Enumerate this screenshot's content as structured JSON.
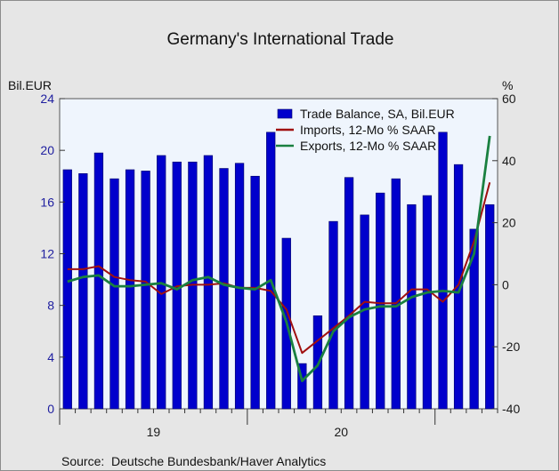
{
  "chart_data": {
    "type": "bar+line",
    "title": "Germany's International Trade",
    "left_axis_label": "Bil.EUR",
    "right_axis_label": "%",
    "left_ylim": [
      0,
      24
    ],
    "left_ticks": [
      "0",
      "4",
      "8",
      "12",
      "16",
      "20",
      "24"
    ],
    "right_ylim": [
      -40,
      60
    ],
    "right_ticks": [
      "-40",
      "-20",
      "0",
      "20",
      "40",
      "60"
    ],
    "x_labels": [
      "19",
      "20"
    ],
    "source": "Source:  Deutsche Bundesbank/Haver Analytics",
    "grid": false,
    "legend_position": "top-right",
    "months": [
      "2019-01",
      "2019-02",
      "2019-03",
      "2019-04",
      "2019-05",
      "2019-06",
      "2019-07",
      "2019-08",
      "2019-09",
      "2019-10",
      "2019-11",
      "2019-12",
      "2020-01",
      "2020-02",
      "2020-03",
      "2020-04",
      "2020-05",
      "2020-06",
      "2020-07",
      "2020-08",
      "2020-09",
      "2020-10",
      "2020-11",
      "2020-12",
      "2021-01",
      "2021-02",
      "2021-03",
      "2021-04"
    ],
    "series": [
      {
        "name": "Trade Balance, SA, Bil.EUR",
        "type": "bar",
        "axis": "left",
        "color": "#0000cc",
        "values": [
          18.5,
          18.2,
          19.8,
          17.8,
          18.5,
          18.4,
          19.6,
          19.1,
          19.1,
          19.6,
          18.6,
          19.0,
          18.0,
          21.4,
          13.2,
          3.5,
          7.2,
          14.5,
          17.9,
          15.0,
          16.7,
          17.8,
          15.8,
          16.5,
          21.4,
          18.9,
          13.9,
          15.8
        ]
      },
      {
        "name": "Imports, 12-Mo % SAAR",
        "type": "line",
        "axis": "right",
        "color": "#a01010",
        "values": [
          5.0,
          5.0,
          6.0,
          2.5,
          1.5,
          1.0,
          -3.0,
          -0.5,
          0.0,
          0.0,
          0.5,
          -1.0,
          -1.0,
          -2.0,
          -8.0,
          -22.0,
          -18.0,
          -14.0,
          -10.0,
          -5.5,
          -6.0,
          -6.0,
          -1.5,
          -1.5,
          -5.5,
          0.0,
          14.0,
          33.0
        ]
      },
      {
        "name": "Exports, 12-Mo % SAAR",
        "type": "line",
        "axis": "right",
        "color": "#1a8040",
        "values": [
          1.0,
          2.5,
          3.0,
          -0.5,
          -0.5,
          0.0,
          0.5,
          -1.5,
          1.5,
          2.5,
          0.0,
          -1.0,
          -1.5,
          1.5,
          -12.0,
          -31.0,
          -26.0,
          -15.0,
          -10.5,
          -8.0,
          -7.0,
          -7.0,
          -4.0,
          -2.5,
          -2.0,
          -2.5,
          10.0,
          48.0
        ]
      }
    ]
  }
}
